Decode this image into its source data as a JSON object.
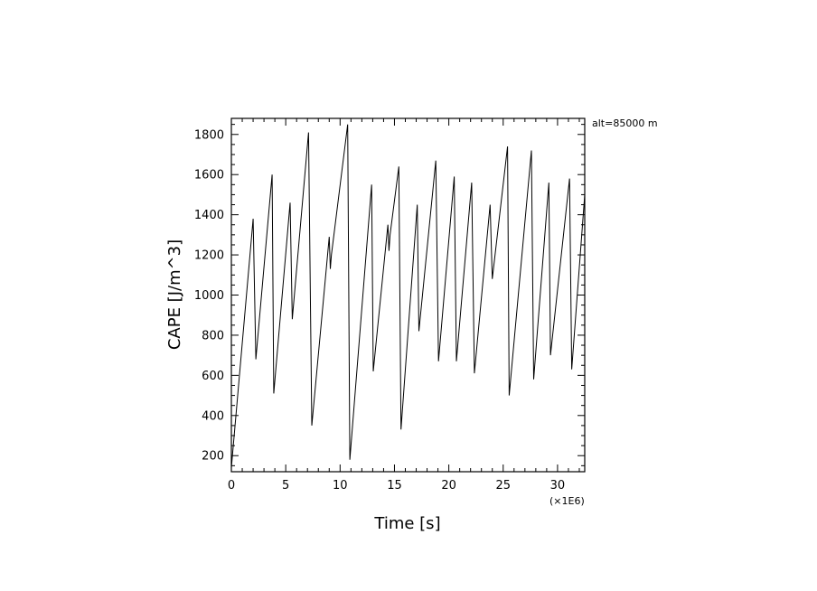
{
  "chart_data": {
    "type": "line",
    "title": "",
    "xlabel": "Time [s]",
    "ylabel": "CAPE [J/m^3]",
    "x_multiplier_label": "(×1E6)",
    "annotation": "alt=85000  m",
    "xlim": [
      0,
      32.5
    ],
    "ylim": [
      120,
      1880
    ],
    "x_ticks": [
      0,
      5,
      10,
      15,
      20,
      25,
      30
    ],
    "x_tick_labels": [
      "0",
      "5",
      "10",
      "15",
      "20",
      "25",
      "30"
    ],
    "y_ticks": [
      200,
      400,
      600,
      800,
      1000,
      1200,
      1400,
      1600,
      1800
    ],
    "y_tick_labels": [
      "200",
      "400",
      "600",
      "800",
      "1000",
      "1200",
      "1400",
      "1600",
      "1800"
    ],
    "grid": false,
    "line_color": "#000000",
    "series": [
      {
        "x": [
          0,
          2.0,
          2.25,
          3.75,
          3.9,
          5.4,
          5.6,
          7.1,
          7.4,
          9.0,
          9.1,
          9.2,
          10.7,
          10.9,
          12.9,
          13.05,
          14.4,
          14.5,
          14.6,
          15.4,
          15.6,
          17.1,
          17.25,
          18.8,
          19.05,
          20.5,
          20.7,
          22.1,
          22.35,
          23.8,
          24.0,
          25.4,
          25.55,
          27.6,
          27.8,
          29.2,
          29.35,
          31.1,
          31.3,
          32.5
        ],
        "y": [
          140,
          1380,
          680,
          1600,
          510,
          1460,
          880,
          1810,
          350,
          1290,
          1130,
          1200,
          1850,
          180,
          1550,
          620,
          1350,
          1220,
          1300,
          1640,
          330,
          1450,
          820,
          1670,
          670,
          1590,
          670,
          1560,
          610,
          1450,
          1080,
          1740,
          500,
          1720,
          580,
          1560,
          700,
          1580,
          630,
          1500
        ]
      }
    ]
  }
}
